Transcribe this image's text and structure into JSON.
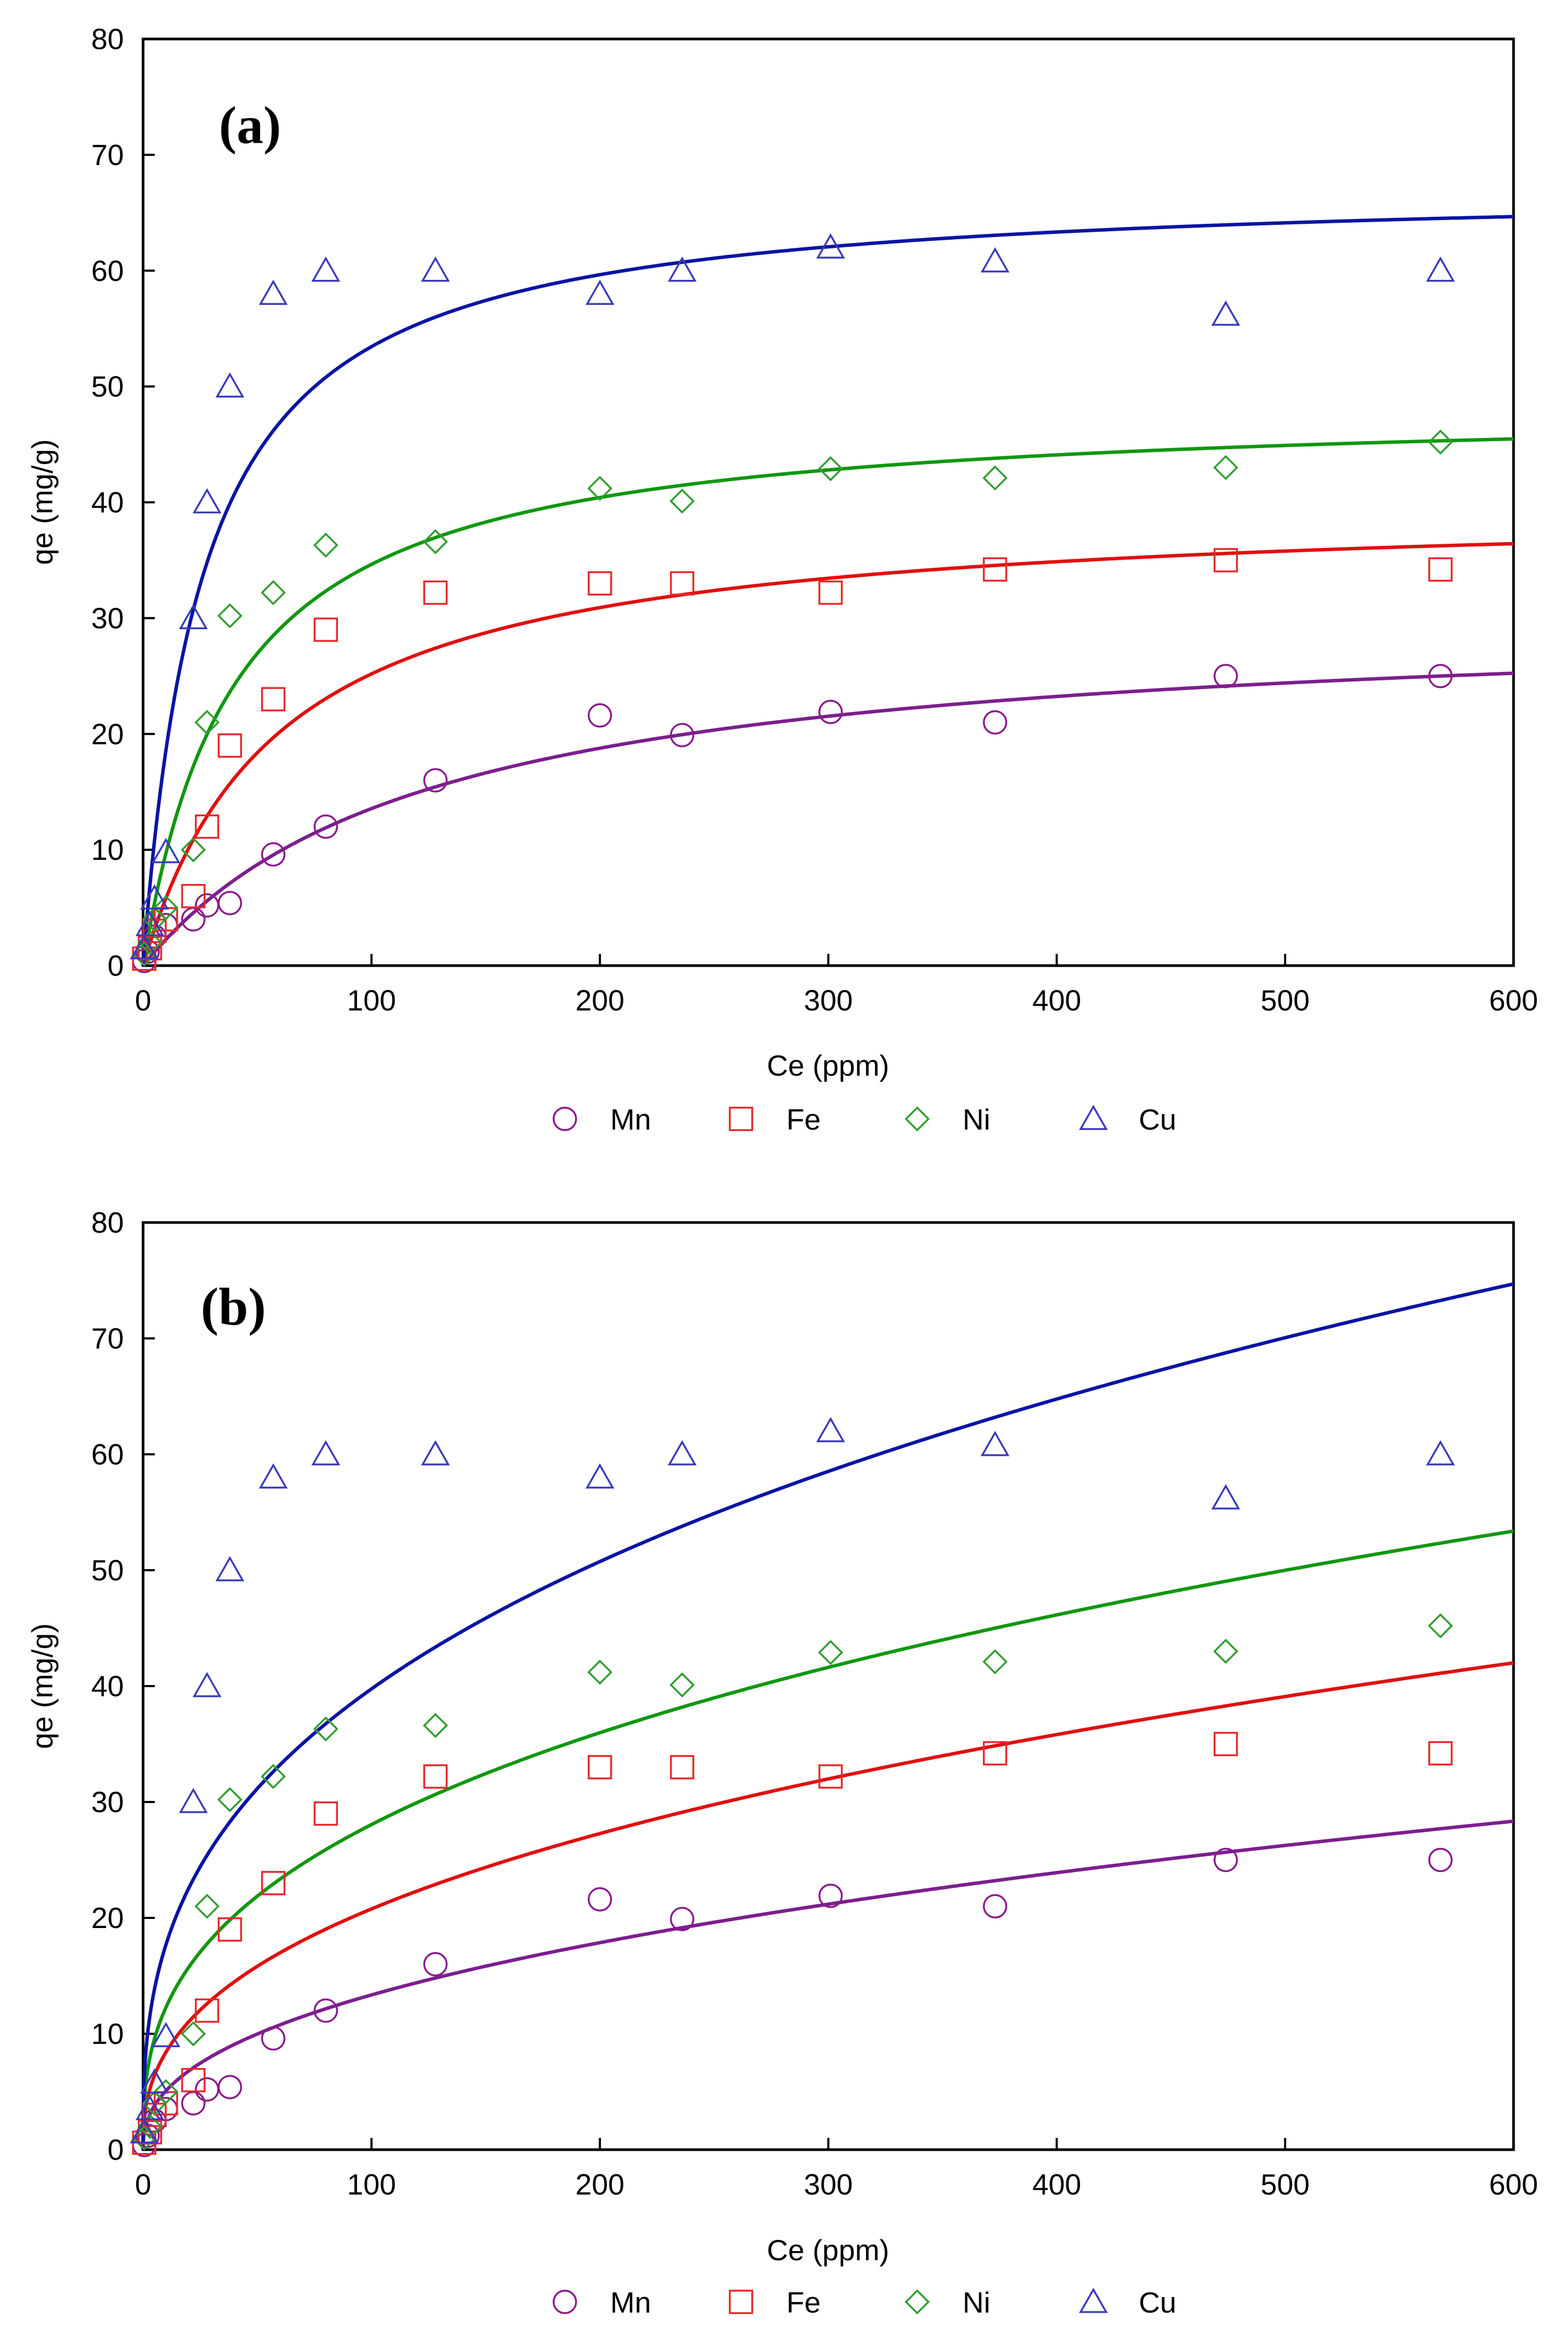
{
  "chart_data": [
    {
      "type": "scatter",
      "panel_label": "(a)",
      "xlabel": "Ce (ppm)",
      "ylabel": "qe (mg/g)",
      "xlim": [
        0,
        600
      ],
      "ylim": [
        0,
        80
      ],
      "x_ticks": [
        0,
        100,
        200,
        300,
        400,
        500,
        600
      ],
      "y_ticks": [
        0,
        10,
        20,
        30,
        40,
        50,
        60,
        70,
        80
      ],
      "grid": false,
      "legend": "bottom",
      "model": "langmuir",
      "series": [
        {
          "name": "Mn",
          "marker": "circle",
          "color": "#8B1A8B",
          "fit_color": "#7B1F8E",
          "points": [
            [
              0.5,
              0.4
            ],
            [
              2,
              1.2
            ],
            [
              5,
              2.5
            ],
            [
              10,
              3.5
            ],
            [
              22,
              4.0
            ],
            [
              28,
              5.2
            ],
            [
              38,
              5.4
            ],
            [
              57,
              9.6
            ],
            [
              80,
              12
            ],
            [
              128,
              16
            ],
            [
              200,
              21.6
            ],
            [
              236,
              19.9
            ],
            [
              301,
              21.9
            ],
            [
              373,
              21.0
            ],
            [
              474,
              25
            ],
            [
              568,
              25
            ]
          ],
          "fit": {
            "qmax": 30.5,
            "b": 0.008
          }
        },
        {
          "name": "Fe",
          "marker": "square",
          "color": "#E8282A",
          "fit_color": "#E01010",
          "points": [
            [
              0.5,
              0.6
            ],
            [
              3,
              1.5
            ],
            [
              5,
              3.0
            ],
            [
              10,
              4.0
            ],
            [
              22,
              6.0
            ],
            [
              28,
              12
            ],
            [
              38,
              19
            ],
            [
              57,
              23
            ],
            [
              80,
              29
            ],
            [
              128,
              32.2
            ],
            [
              200,
              33
            ],
            [
              236,
              33
            ],
            [
              301,
              32.2
            ],
            [
              373,
              34.2
            ],
            [
              474,
              35
            ],
            [
              568,
              34.2
            ]
          ],
          "fit": {
            "qmax": 40,
            "b": 0.017
          }
        },
        {
          "name": "Ni",
          "marker": "diamond",
          "color": "#2E9E2E",
          "fit_color": "#119711",
          "points": [
            [
              0.5,
              1.0
            ],
            [
              3,
              2.0
            ],
            [
              5,
              4.0
            ],
            [
              10,
              5.0
            ],
            [
              22,
              10
            ],
            [
              28,
              21
            ],
            [
              38,
              30.2
            ],
            [
              57,
              32.2
            ],
            [
              80,
              36.3
            ],
            [
              128,
              36.6
            ],
            [
              200,
              41.2
            ],
            [
              236,
              40.1
            ],
            [
              301,
              42.9
            ],
            [
              373,
              42.1
            ],
            [
              474,
              43
            ],
            [
              568,
              45.2
            ]
          ],
          "fit": {
            "qmax": 48.5,
            "b": 0.025
          }
        },
        {
          "name": "Cu",
          "marker": "triangle",
          "color": "#3A3ABB",
          "fit_color": "#0A14A3",
          "points": [
            [
              0.5,
              1.5
            ],
            [
              3,
              3.5
            ],
            [
              5,
              5.8
            ],
            [
              10,
              9.8
            ],
            [
              22,
              30
            ],
            [
              28,
              40
            ],
            [
              38,
              50
            ],
            [
              57,
              58
            ],
            [
              80,
              60
            ],
            [
              128,
              60
            ],
            [
              200,
              58
            ],
            [
              236,
              60
            ],
            [
              301,
              62
            ],
            [
              373,
              60.8
            ],
            [
              474,
              56.2
            ],
            [
              568,
              60
            ]
          ],
          "fit": {
            "qmax": 67.5,
            "b": 0.038
          }
        }
      ]
    },
    {
      "type": "scatter",
      "panel_label": "(b)",
      "xlabel": "Ce (ppm)",
      "ylabel": "qe (mg/g)",
      "xlim": [
        0,
        600
      ],
      "ylim": [
        0,
        80
      ],
      "x_ticks": [
        0,
        100,
        200,
        300,
        400,
        500,
        600
      ],
      "y_ticks": [
        0,
        10,
        20,
        30,
        40,
        50,
        60,
        70,
        80
      ],
      "grid": false,
      "legend": "bottom",
      "model": "freundlich",
      "series": [
        {
          "name": "Mn",
          "marker": "circle",
          "color": "#8B1A8B",
          "fit_color": "#7B1F8E",
          "points": [
            [
              0.5,
              0.4
            ],
            [
              2,
              1.2
            ],
            [
              5,
              2.5
            ],
            [
              10,
              3.5
            ],
            [
              22,
              4.0
            ],
            [
              28,
              5.2
            ],
            [
              38,
              5.4
            ],
            [
              57,
              9.6
            ],
            [
              80,
              12
            ],
            [
              128,
              16
            ],
            [
              200,
              21.6
            ],
            [
              236,
              19.9
            ],
            [
              301,
              21.9
            ],
            [
              373,
              21.0
            ],
            [
              474,
              25
            ],
            [
              568,
              25
            ]
          ],
          "fit": {
            "k": 1.93,
            "n": 0.42
          }
        },
        {
          "name": "Fe",
          "marker": "square",
          "color": "#E8282A",
          "fit_color": "#E01010",
          "points": [
            [
              0.5,
              0.6
            ],
            [
              3,
              1.5
            ],
            [
              5,
              3.0
            ],
            [
              10,
              4.0
            ],
            [
              22,
              6.0
            ],
            [
              28,
              12
            ],
            [
              38,
              19
            ],
            [
              57,
              23
            ],
            [
              80,
              29
            ],
            [
              128,
              32.2
            ],
            [
              200,
              33
            ],
            [
              236,
              33
            ],
            [
              301,
              32.2
            ],
            [
              373,
              34.2
            ],
            [
              474,
              35
            ],
            [
              568,
              34.2
            ]
          ],
          "fit": {
            "k": 3.4,
            "n": 0.393
          }
        },
        {
          "name": "Ni",
          "marker": "diamond",
          "color": "#2E9E2E",
          "fit_color": "#119711",
          "points": [
            [
              0.5,
              1.0
            ],
            [
              3,
              2.0
            ],
            [
              5,
              4.0
            ],
            [
              10,
              5.0
            ],
            [
              22,
              10
            ],
            [
              28,
              21
            ],
            [
              38,
              30.2
            ],
            [
              57,
              32.2
            ],
            [
              80,
              36.3
            ],
            [
              128,
              36.6
            ],
            [
              200,
              41.2
            ],
            [
              236,
              40.1
            ],
            [
              301,
              42.9
            ],
            [
              373,
              42.1
            ],
            [
              474,
              43
            ],
            [
              568,
              45.2
            ]
          ],
          "fit": {
            "k": 5.37,
            "n": 0.359
          }
        },
        {
          "name": "Cu",
          "marker": "triangle",
          "color": "#3A3ABB",
          "fit_color": "#0A14A3",
          "points": [
            [
              0.5,
              1.5
            ],
            [
              3,
              3.5
            ],
            [
              5,
              5.8
            ],
            [
              10,
              9.8
            ],
            [
              22,
              30
            ],
            [
              28,
              40
            ],
            [
              38,
              50
            ],
            [
              57,
              58
            ],
            [
              80,
              60
            ],
            [
              128,
              60
            ],
            [
              200,
              58
            ],
            [
              236,
              60
            ],
            [
              301,
              62
            ],
            [
              373,
              60.8
            ],
            [
              474,
              56.2
            ],
            [
              568,
              60
            ]
          ],
          "fit": {
            "k": 7.86,
            "n": 0.352
          }
        }
      ]
    }
  ]
}
